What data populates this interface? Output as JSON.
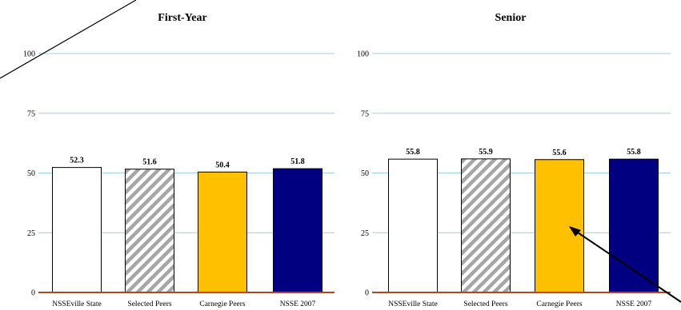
{
  "chart_data": [
    {
      "type": "bar",
      "title": "First-Year",
      "categories": [
        "NSSEville State",
        "Selected Peers",
        "Carnegie Peers",
        "NSSE 2007"
      ],
      "values": [
        52.3,
        51.6,
        50.4,
        51.8
      ],
      "yticks": [
        "0",
        "25",
        "50",
        "75",
        "100"
      ],
      "ylim": [
        0,
        100
      ],
      "grid": true
    },
    {
      "type": "bar",
      "title": "Senior",
      "categories": [
        "NSSEville State",
        "Selected Peers",
        "Carnegie Peers",
        "NSSE 2007"
      ],
      "values": [
        55.8,
        55.9,
        55.6,
        55.8
      ],
      "yticks": [
        "0",
        "25",
        "50",
        "75",
        "100"
      ],
      "ylim": [
        0,
        100
      ],
      "grid": true
    }
  ],
  "colors": {
    "gridline": "#9fcfe8",
    "baseline": "#b5451b",
    "bar_fills": [
      "#ffffff",
      "hatch-gray",
      "#ffc000",
      "#000080"
    ],
    "bar_stroke": "#000000"
  }
}
